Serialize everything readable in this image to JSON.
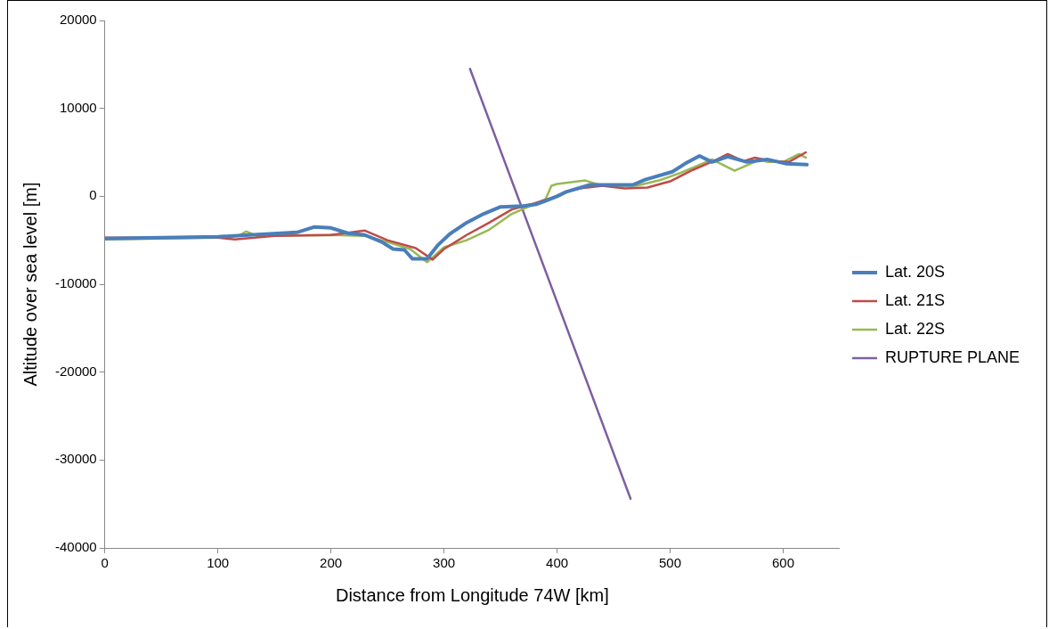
{
  "chart_data": {
    "type": "line",
    "xlabel": "Distance from Longitude 74W [km]",
    "ylabel": "Altitude over sea level [m]",
    "xlim": [
      0,
      650
    ],
    "xticks": [
      0,
      100,
      200,
      300,
      400,
      500,
      600
    ],
    "ylim": [
      -40000,
      20000
    ],
    "yticks": [
      -40000,
      -30000,
      -20000,
      -10000,
      0,
      10000,
      20000
    ],
    "grid": false,
    "legend": "right",
    "marker": "none",
    "line_style": "solid",
    "series": [
      {
        "name": "Lat. 20S",
        "color": "#4a7ebb",
        "x": [
          0,
          100,
          170,
          185,
          200,
          215,
          230,
          245,
          255,
          265,
          272,
          285,
          295,
          305,
          320,
          335,
          350,
          370,
          382,
          390,
          400,
          408,
          429,
          467,
          478,
          502,
          513,
          526,
          537,
          551,
          568,
          586,
          603,
          621
        ],
        "values": [
          -4800,
          -4600,
          -4100,
          -3500,
          -3600,
          -4200,
          -4400,
          -5200,
          -6000,
          -6100,
          -7100,
          -7100,
          -5500,
          -4300,
          -3000,
          -2000,
          -1200,
          -1100,
          -900,
          -500,
          0,
          500,
          1300,
          1300,
          1900,
          2800,
          3700,
          4600,
          3900,
          4500,
          3900,
          4200,
          3700,
          3600
        ]
      },
      {
        "name": "Lat. 21S",
        "color": "#be4b48",
        "x": [
          0,
          100,
          115,
          150,
          200,
          230,
          250,
          275,
          290,
          300,
          320,
          340,
          360,
          380,
          395,
          410,
          420,
          440,
          460,
          480,
          500,
          520,
          540,
          551,
          565,
          575,
          590,
          605,
          620
        ],
        "values": [
          -4700,
          -4700,
          -4900,
          -4500,
          -4400,
          -3900,
          -5000,
          -5900,
          -7200,
          -6000,
          -4400,
          -3000,
          -1500,
          -800,
          -200,
          600,
          900,
          1200,
          900,
          1000,
          1700,
          3000,
          4100,
          4800,
          4000,
          4400,
          4000,
          3900,
          5000
        ]
      },
      {
        "name": "Lat. 22S",
        "color": "#98b954",
        "x": [
          0,
          100,
          118,
          125,
          135,
          200,
          230,
          250,
          270,
          285,
          300,
          320,
          340,
          360,
          380,
          390,
          395,
          400,
          425,
          440,
          470,
          490,
          510,
          530,
          537,
          557,
          580,
          586,
          600,
          614,
          620
        ],
        "values": [
          -4900,
          -4700,
          -4500,
          -4000,
          -4500,
          -4400,
          -4500,
          -5200,
          -6000,
          -7500,
          -5800,
          -5000,
          -3800,
          -2000,
          -900,
          -300,
          1200,
          1400,
          1800,
          1200,
          1200,
          1800,
          2700,
          3800,
          4200,
          2900,
          4200,
          3900,
          3900,
          4800,
          4400
        ]
      },
      {
        "name": "RUPTURE PLANE",
        "color": "#7d60a0",
        "x": [
          323,
          465
        ],
        "values": [
          14500,
          -34400
        ]
      }
    ]
  }
}
